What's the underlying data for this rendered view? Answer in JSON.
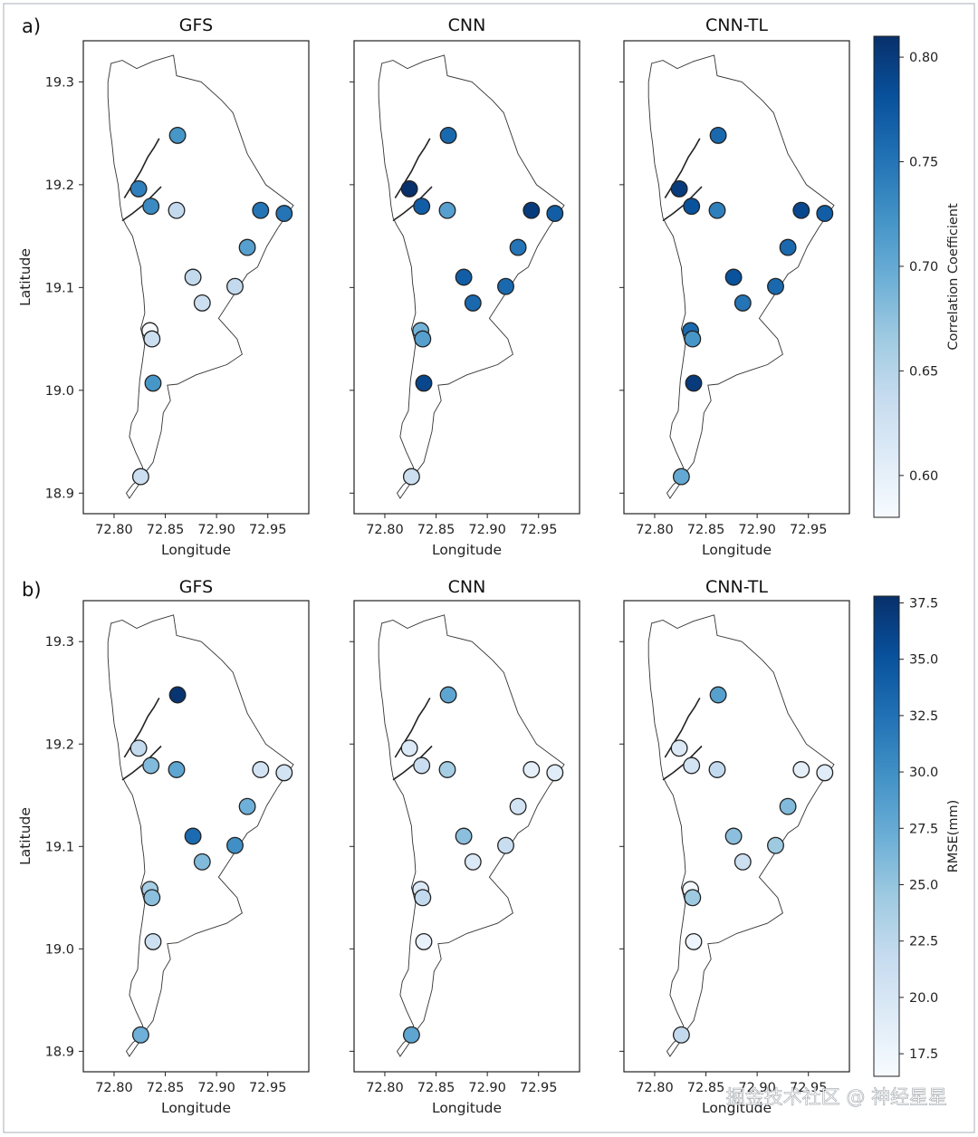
{
  "figure": {
    "watermark": "掘金技术社区 @ 神经星星"
  },
  "chart_data": [
    {
      "type": "scatter",
      "panel_label": "a)",
      "subplots": [
        "GFS",
        "CNN",
        "CNN-TL"
      ],
      "xlabel": "Longitude",
      "ylabel": "Latitude",
      "xticks": [
        "72.80",
        "72.85",
        "72.90",
        "72.95"
      ],
      "yticks": [
        "18.9",
        "19.0",
        "19.1",
        "19.2",
        "19.3"
      ],
      "xlim": [
        72.77,
        72.99
      ],
      "ylim": [
        18.88,
        19.34
      ],
      "colorbar": {
        "label": "Correlation Coefficient",
        "min": 0.58,
        "max": 0.81,
        "ticks": [
          "0.60",
          "0.65",
          "0.70",
          "0.75",
          "0.80"
        ],
        "colormap": [
          "#f7fbff",
          "#deebf7",
          "#c6dbef",
          "#9ecae1",
          "#6baed6",
          "#4292c6",
          "#2171b5",
          "#08519c",
          "#08306b"
        ]
      },
      "stations": [
        {
          "lon": 72.862,
          "lat": 19.248
        },
        {
          "lon": 72.824,
          "lat": 19.196
        },
        {
          "lon": 72.836,
          "lat": 19.179
        },
        {
          "lon": 72.861,
          "lat": 19.175
        },
        {
          "lon": 72.943,
          "lat": 19.175
        },
        {
          "lon": 72.966,
          "lat": 19.172
        },
        {
          "lon": 72.93,
          "lat": 19.139
        },
        {
          "lon": 72.877,
          "lat": 19.11
        },
        {
          "lon": 72.918,
          "lat": 19.101
        },
        {
          "lon": 72.886,
          "lat": 19.085
        },
        {
          "lon": 72.835,
          "lat": 19.058
        },
        {
          "lon": 72.837,
          "lat": 19.05
        },
        {
          "lon": 72.838,
          "lat": 19.007
        },
        {
          "lon": 72.826,
          "lat": 18.916
        }
      ],
      "series": [
        {
          "name": "GFS",
          "values": [
            0.72,
            0.74,
            0.73,
            0.64,
            0.75,
            0.75,
            0.71,
            0.64,
            0.64,
            0.63,
            0.58,
            0.63,
            0.72,
            0.63
          ]
        },
        {
          "name": "CNN",
          "values": [
            0.76,
            0.81,
            0.77,
            0.71,
            0.8,
            0.77,
            0.75,
            0.77,
            0.76,
            0.76,
            0.69,
            0.71,
            0.79,
            0.63
          ]
        },
        {
          "name": "CNN-TL",
          "values": [
            0.76,
            0.8,
            0.78,
            0.74,
            0.79,
            0.77,
            0.76,
            0.78,
            0.76,
            0.75,
            0.76,
            0.72,
            0.8,
            0.7
          ]
        }
      ]
    },
    {
      "type": "scatter",
      "panel_label": "b)",
      "subplots": [
        "GFS",
        "CNN",
        "CNN-TL"
      ],
      "xlabel": "Longitude",
      "ylabel": "Latitude",
      "xticks": [
        "72.80",
        "72.85",
        "72.90",
        "72.95"
      ],
      "yticks": [
        "18.9",
        "19.0",
        "19.1",
        "19.2",
        "19.3"
      ],
      "xlim": [
        72.77,
        72.99
      ],
      "ylim": [
        18.88,
        19.34
      ],
      "colorbar": {
        "label": "RMSE(mm)",
        "min": 16.5,
        "max": 37.8,
        "ticks": [
          "17.5",
          "20.0",
          "22.5",
          "25.0",
          "27.5",
          "30.0",
          "32.5",
          "35.0",
          "37.5"
        ],
        "colormap": [
          "#f7fbff",
          "#deebf7",
          "#c6dbef",
          "#9ecae1",
          "#6baed6",
          "#4292c6",
          "#2171b5",
          "#08519c",
          "#08306b"
        ]
      },
      "stations": [
        {
          "lon": 72.862,
          "lat": 19.248
        },
        {
          "lon": 72.824,
          "lat": 19.196
        },
        {
          "lon": 72.836,
          "lat": 19.179
        },
        {
          "lon": 72.861,
          "lat": 19.175
        },
        {
          "lon": 72.943,
          "lat": 19.175
        },
        {
          "lon": 72.966,
          "lat": 19.172
        },
        {
          "lon": 72.93,
          "lat": 19.139
        },
        {
          "lon": 72.877,
          "lat": 19.11
        },
        {
          "lon": 72.918,
          "lat": 19.101
        },
        {
          "lon": 72.886,
          "lat": 19.085
        },
        {
          "lon": 72.835,
          "lat": 19.058
        },
        {
          "lon": 72.837,
          "lat": 19.05
        },
        {
          "lon": 72.838,
          "lat": 19.007
        },
        {
          "lon": 72.826,
          "lat": 18.916
        }
      ],
      "series": [
        {
          "name": "GFS",
          "values": [
            37.5,
            22.0,
            26.0,
            28.0,
            20.5,
            20.5,
            27.0,
            33.0,
            30.0,
            26.0,
            24.0,
            25.5,
            21.0,
            27.0
          ]
        },
        {
          "name": "CNN",
          "values": [
            28.0,
            19.5,
            21.5,
            24.0,
            18.5,
            19.0,
            20.5,
            25.5,
            21.5,
            19.5,
            19.5,
            22.0,
            18.0,
            28.0
          ]
        },
        {
          "name": "CNN-TL",
          "values": [
            28.5,
            19.5,
            20.5,
            22.0,
            18.5,
            19.0,
            26.0,
            25.5,
            24.5,
            21.0,
            17.0,
            24.5,
            17.5,
            22.0
          ]
        }
      ]
    }
  ]
}
